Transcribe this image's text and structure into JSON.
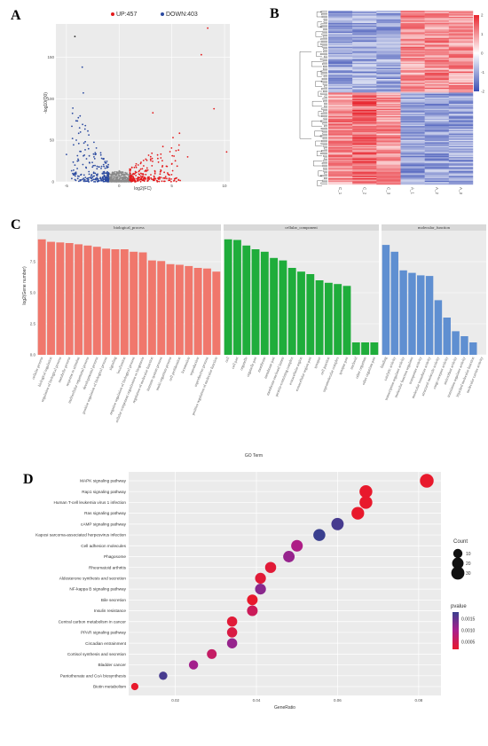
{
  "chart_data": [
    {
      "panel": "A",
      "type": "scatter",
      "legend": [
        {
          "label": "UP:457",
          "color": "#e41a1c"
        },
        {
          "label": "DOWN:403",
          "color": "#2b4aa0"
        }
      ],
      "xlabel": "log2(FC)",
      "ylabel": "-log10(Q0)",
      "x_ticks": [
        "-5",
        "0",
        "5",
        "10"
      ],
      "y_ticks": [
        "0",
        "50",
        "100",
        "150"
      ],
      "xlim": [
        -6,
        10.5
      ],
      "ylim": [
        0,
        190
      ],
      "notable_points": [
        {
          "x": -4.2,
          "y": 175,
          "group": "down"
        },
        {
          "x": -3.5,
          "y": 138,
          "group": "down"
        },
        {
          "x": -3.4,
          "y": 107,
          "group": "down"
        },
        {
          "x": -5.0,
          "y": 33,
          "group": "down"
        },
        {
          "x": 8.4,
          "y": 185,
          "group": "up"
        },
        {
          "x": 7.8,
          "y": 153,
          "group": "up"
        },
        {
          "x": 9.0,
          "y": 88,
          "group": "up"
        },
        {
          "x": 3.2,
          "y": 83,
          "group": "up"
        },
        {
          "x": 10.2,
          "y": 36,
          "group": "up"
        },
        {
          "x": 6.5,
          "y": 30,
          "group": "up"
        }
      ]
    },
    {
      "panel": "B",
      "type": "heatmap",
      "columns": [
        "C_1",
        "C_2",
        "C_3",
        "A_1",
        "A_2",
        "A_3"
      ],
      "color_scale": {
        "min": -2,
        "max": 2,
        "low": "#3a4fb5",
        "mid": "#ffffff",
        "high": "#e8262f"
      },
      "scale_ticks": [
        "2",
        "1",
        "0",
        "-1",
        "-2"
      ]
    },
    {
      "panel": "C",
      "type": "bar",
      "ylabel": "log2(Gene number)",
      "xlabel": "GO Term",
      "ylim": [
        0,
        10
      ],
      "y_ticks": [
        0,
        2.5,
        5,
        7.5
      ],
      "y_tick_labels": [
        "0.0",
        "2.5",
        "5.0",
        "7.5"
      ],
      "groups": [
        {
          "name": "biological_process",
          "color": "#f0776c",
          "categories": [
            "cellular process",
            "biological regulation",
            "regulation of biological process",
            "metabolic process",
            "response to stimulus",
            "multicellular organismal process",
            "developmental process",
            "positive regulation of biological process",
            "signaling",
            "localization",
            "negative regulation of biological process",
            "cellular component organization or biogenesis",
            "regulation of molecular function",
            "immune system process",
            "multi-organism process",
            "cell proliferation",
            "locomotion",
            "reproduction",
            "reproductive process",
            "positive regulation of molecular function"
          ],
          "values": [
            9.3,
            9.1,
            9.05,
            9.0,
            8.9,
            8.8,
            8.7,
            8.55,
            8.5,
            8.5,
            8.3,
            8.25,
            7.6,
            7.55,
            7.3,
            7.25,
            7.15,
            7.0,
            6.95,
            6.7
          ]
        },
        {
          "name": "cellular_component",
          "color": "#1fad3b",
          "categories": [
            "cell",
            "cell part",
            "organelle",
            "organelle part",
            "membrane",
            "membrane part",
            "membrane-enclosed lumen",
            "protein-containing complex",
            "extracellular region",
            "extracellular region part",
            "synapse",
            "cell junction",
            "supramolecular complex",
            "synapse part",
            "nucleoid",
            "other organism",
            "other organism part"
          ],
          "values": [
            9.3,
            9.25,
            8.8,
            8.5,
            8.3,
            7.8,
            7.6,
            7.0,
            6.7,
            6.5,
            6.0,
            5.8,
            5.7,
            5.55,
            1.0,
            1.0,
            1.0
          ]
        },
        {
          "name": "molecular_function",
          "color": "#5f8fd1",
          "categories": [
            "binding",
            "catalytic activity",
            "transcription regulator activity",
            "molecular function regulator",
            "transporter activity",
            "molecular transducer activity",
            "structural molecule activity",
            "cargo receptor activity",
            "antioxidant activity",
            "translation regulator activity",
            "hijacked molecular function",
            "molecular carrier activity"
          ],
          "values": [
            8.85,
            8.3,
            6.8,
            6.6,
            6.4,
            6.35,
            4.4,
            3.0,
            1.9,
            1.5,
            1.0,
            0.0
          ]
        }
      ]
    },
    {
      "panel": "D",
      "type": "scatter",
      "subtype": "bubble",
      "xlabel": "GeneRatio",
      "x_ticks": [
        "0.02",
        "0.04",
        "0.06",
        "0.08"
      ],
      "xlim": [
        0.0085,
        0.0855
      ],
      "size_legend": {
        "title": "Count",
        "items": [
          "10",
          "20",
          "30"
        ]
      },
      "color_legend": {
        "title": "pvalue",
        "items": [
          "0.0015",
          "0.0010",
          "0.0005"
        ],
        "low_color": "#3a3f8f",
        "high_color": "#e8192c"
      },
      "categories": [
        "MAPK signaling pathway",
        "Rap1 signaling pathway",
        "Human T-cell leukemia virus 1 infection",
        "Ras signaling pathway",
        "cAMP signaling pathway",
        "Kaposi sarcoma-associated herpesvirus infection",
        "Cell adhesion molecules",
        "Phagosome",
        "Rheumatoid arthritis",
        "Aldosterone synthesis and secretion",
        "NF-kappa B signaling pathway",
        "Bile secretion",
        "Insulin resistance",
        "Central carbon metabolism in cancer",
        "PPAR signaling pathway",
        "Circadian entrainment",
        "Cortisol synthesis and secretion",
        "Bladder cancer",
        "Pantothenate and CoA biosynthesis",
        "Biotin metabolism"
      ],
      "x": [
        0.082,
        0.067,
        0.067,
        0.065,
        0.06,
        0.0555,
        0.05,
        0.048,
        0.0435,
        0.041,
        0.041,
        0.039,
        0.039,
        0.034,
        0.034,
        0.034,
        0.029,
        0.0245,
        0.017,
        0.01
      ],
      "count": [
        34,
        28,
        28,
        27,
        25,
        23,
        21,
        20,
        18,
        17,
        17,
        16,
        16,
        14,
        14,
        14,
        12,
        10,
        7,
        4
      ],
      "pvalue": [
        0.0002,
        0.0002,
        0.0002,
        0.0002,
        0.0018,
        0.0019,
        0.001,
        0.0012,
        0.0003,
        0.0003,
        0.0013,
        0.0002,
        0.0006,
        0.0003,
        0.0004,
        0.0012,
        0.0007,
        0.0011,
        0.0018,
        0.0002
      ]
    }
  ]
}
